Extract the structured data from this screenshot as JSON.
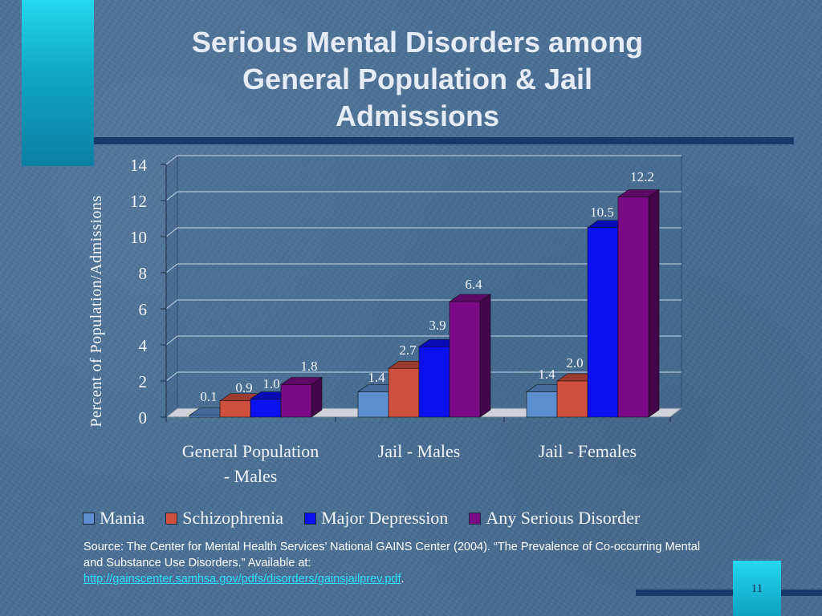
{
  "slide": {
    "title_lines": [
      "Serious Mental Disorders among",
      "General Population & Jail",
      "Admissions"
    ],
    "source_text": "Source: The Center for Mental Health Services’ National GAINS Center (2004). “The Prevalence of Co-occurring Mental and Substance Use Disorders.” Available at:",
    "source_link": "http://gainscenter.samhsa.gov/pdfs/disorders/gainsjailprev.pdf",
    "source_end": ".",
    "page_number": "11"
  },
  "colors": {
    "background": "#4a6f96",
    "accent": "#22d8ee",
    "dark_rule": "#173a6a",
    "link": "#2ae0ff"
  },
  "chart_data": {
    "type": "bar",
    "style": "3d-clustered-column",
    "title": "",
    "ylabel": "Percent of  Population/Admissions",
    "xlabel": "",
    "ylim": [
      0,
      14
    ],
    "yticks": [
      0,
      2,
      4,
      6,
      8,
      10,
      12,
      14
    ],
    "grid": true,
    "legend_position": "bottom",
    "categories": [
      [
        "General Population",
        "- Males"
      ],
      [
        "Jail - Males"
      ],
      [
        "Jail - Females"
      ]
    ],
    "series": [
      {
        "name": "Mania",
        "color": "#5b8fd0",
        "values": [
          0.1,
          1.4,
          1.4
        ],
        "labels": [
          "0.1",
          "1.4",
          "1.4"
        ]
      },
      {
        "name": "Schizophrenia",
        "color": "#d0503e",
        "values": [
          0.9,
          2.7,
          2.0
        ],
        "labels": [
          "0.9",
          "2.7",
          "2.0"
        ]
      },
      {
        "name": "Major Depression",
        "color": "#0a10f0",
        "values": [
          1.0,
          3.9,
          10.5
        ],
        "labels": [
          "1.0",
          "3.9",
          "10.5"
        ]
      },
      {
        "name": "Any Serious Disorder",
        "color": "#7a0a86",
        "values": [
          1.8,
          6.4,
          12.2
        ],
        "labels": [
          "1.8",
          "6.4",
          "12.2"
        ]
      }
    ]
  }
}
